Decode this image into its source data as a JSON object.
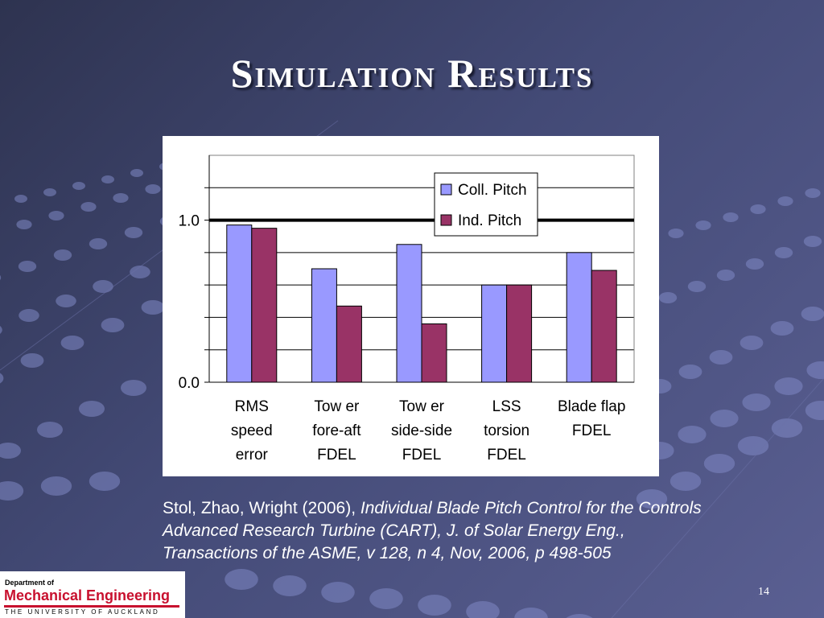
{
  "slide": {
    "title": "Simulation Results",
    "page_number": "14"
  },
  "citation": {
    "authors": "Stol, Zhao, Wright (2006),",
    "italic_line1": "Individual Blade Pitch Control for the Controls",
    "italic_line2": "Advanced Research Turbine (CART), J. of Solar Energy Eng.,",
    "italic_line3": "Transactions of the ASME, v 128, n 4, Nov, 2006, p 498-505"
  },
  "logo": {
    "department_of": "Department of",
    "department": "Mechanical Engineering",
    "university": "THE UNIVERSITY OF AUCKLAND"
  },
  "colors": {
    "coll_pitch": "#9999ff",
    "ind_pitch": "#993366",
    "logo_red": "#c8102e"
  },
  "chart_data": {
    "type": "bar",
    "categories": [
      [
        "RMS",
        "speed",
        "error"
      ],
      [
        "Tow er",
        "fore-aft",
        "FDEL"
      ],
      [
        "Tow er",
        "side-side",
        "FDEL"
      ],
      [
        "LSS",
        "torsion",
        "FDEL"
      ],
      [
        "Blade flap",
        "FDEL"
      ]
    ],
    "series": [
      {
        "name": "Coll. Pitch",
        "values": [
          0.97,
          0.7,
          0.85,
          0.6,
          0.8
        ]
      },
      {
        "name": "Ind. Pitch",
        "values": [
          0.95,
          0.47,
          0.36,
          0.6,
          0.69
        ]
      }
    ],
    "ylim": [
      0,
      1.4
    ],
    "yticks": [
      0.0,
      0.2,
      0.4,
      0.6,
      0.8,
      1.0,
      1.2
    ],
    "ytick_labels": [
      "0.0",
      "1.0"
    ],
    "reference_line": 1.0,
    "grid": true,
    "legend_position": "top-center"
  }
}
